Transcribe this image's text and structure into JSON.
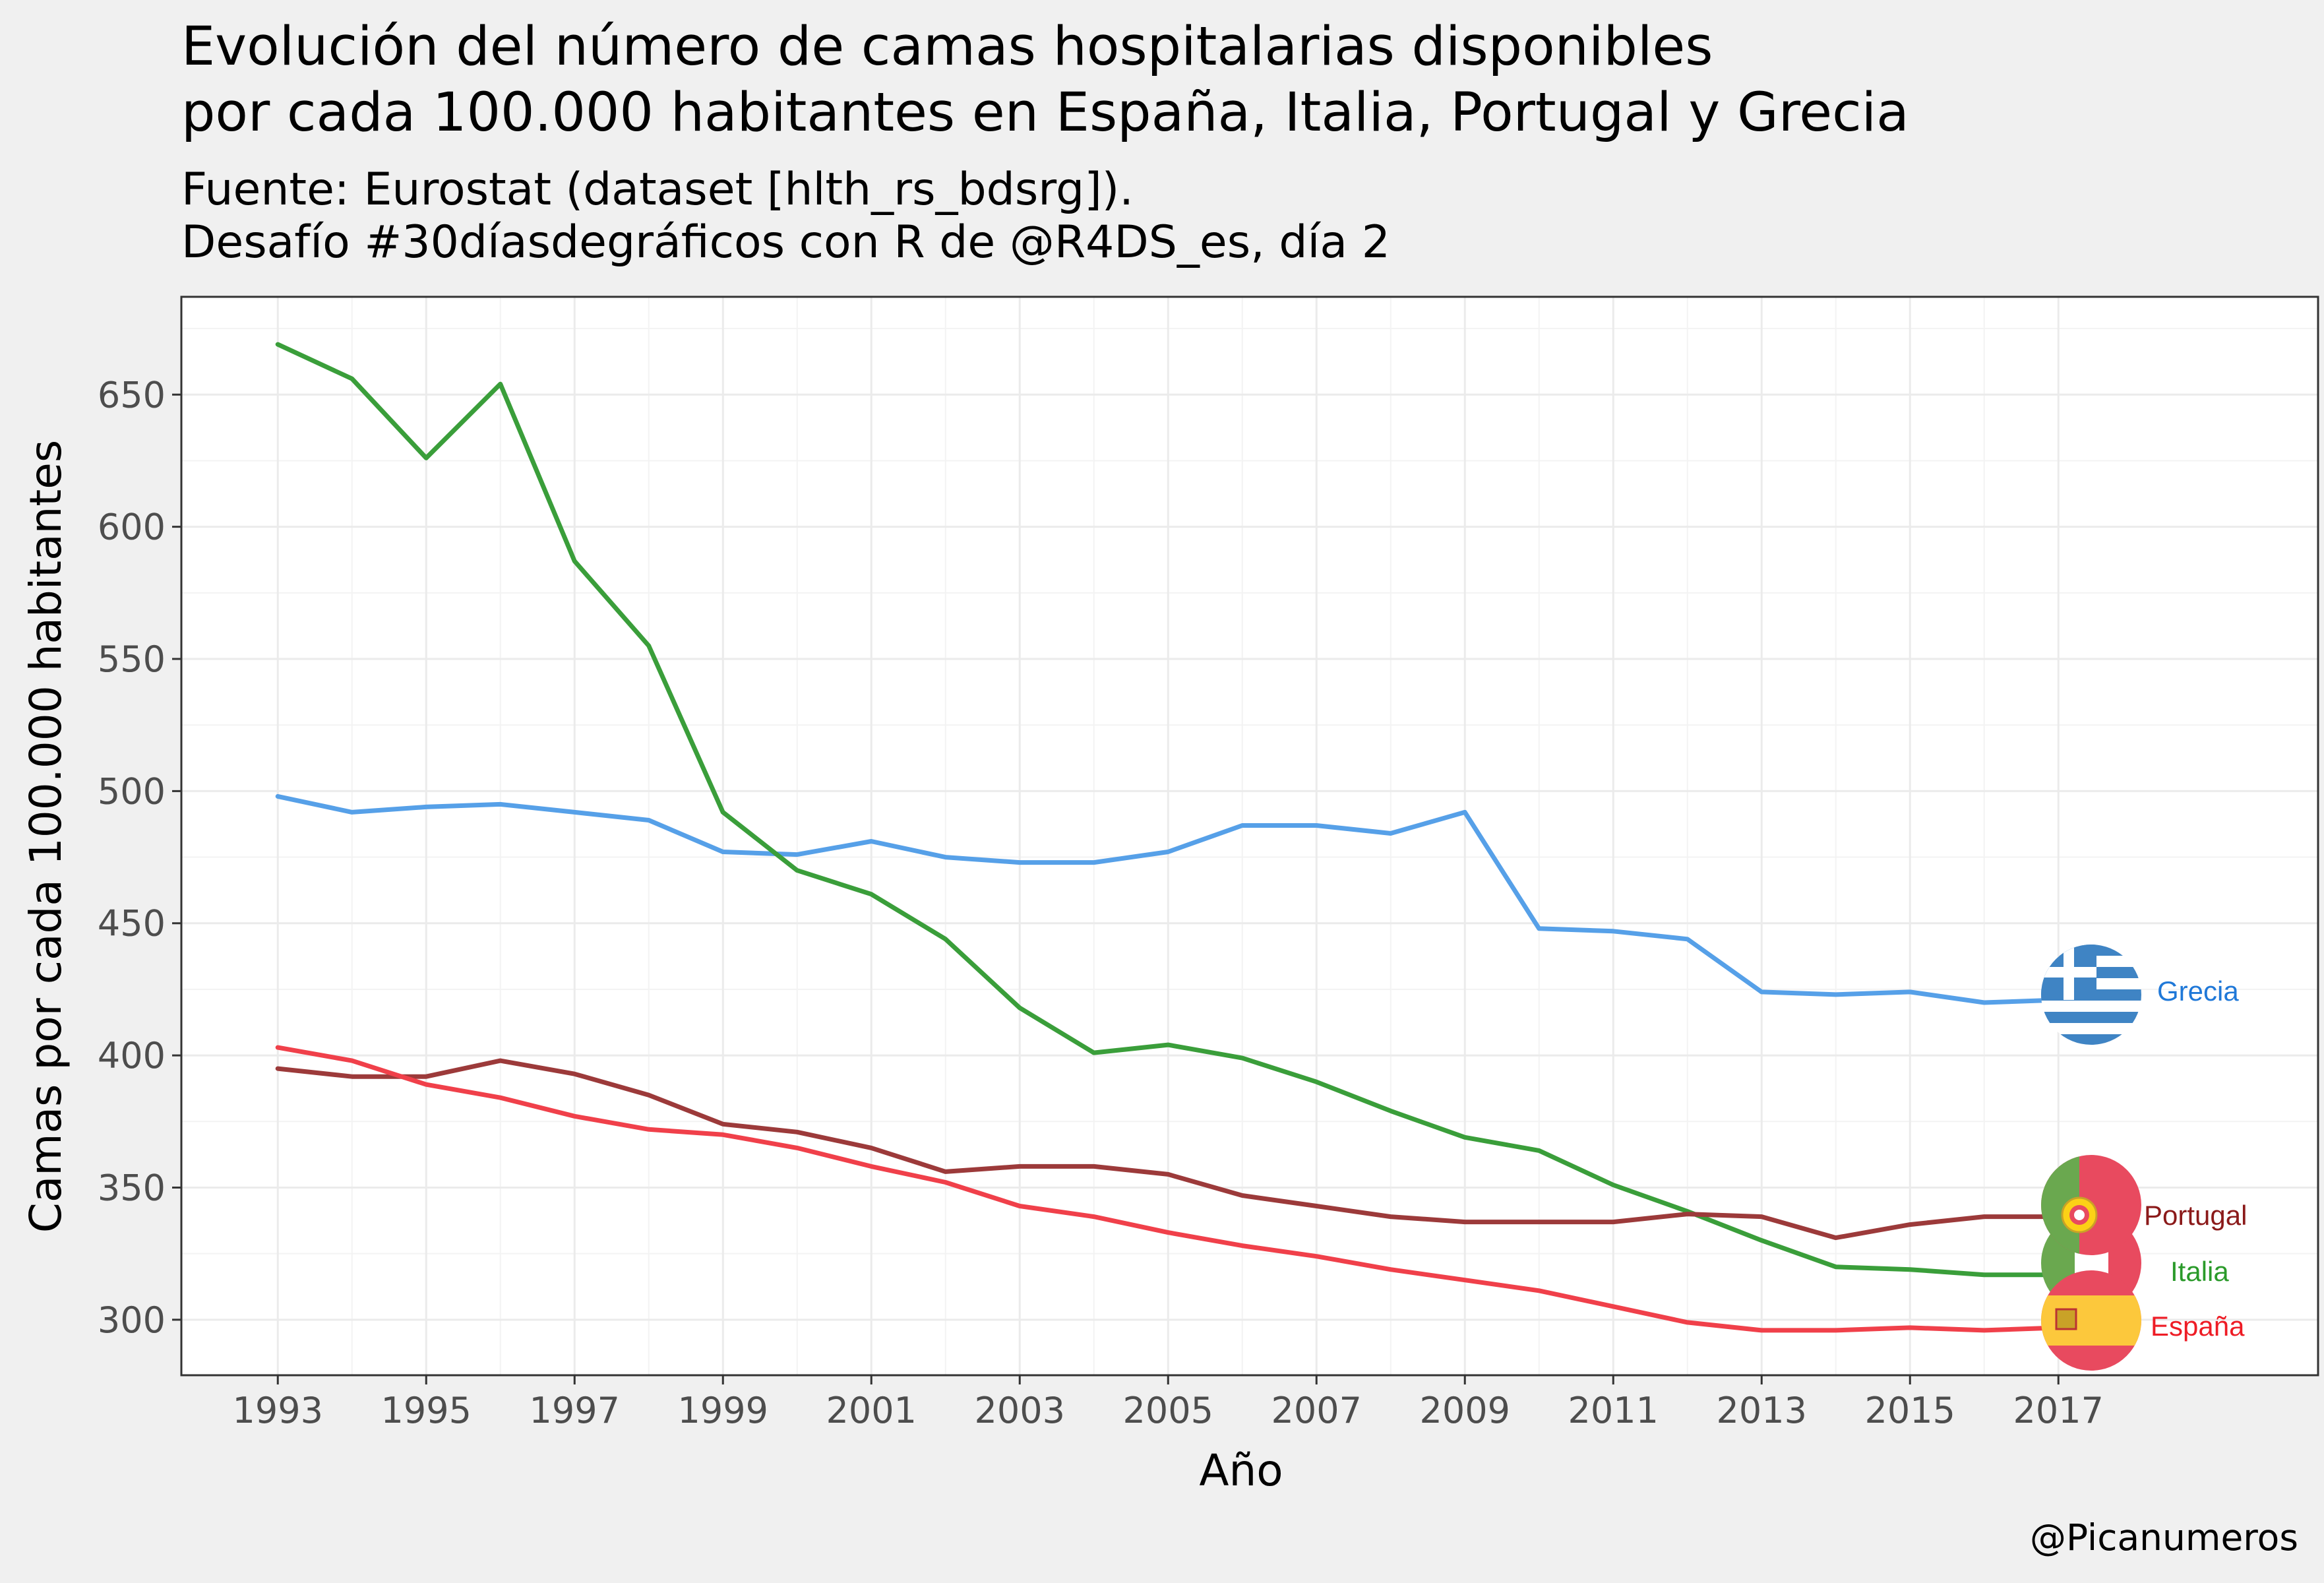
{
  "chart_data": {
    "type": "line",
    "title_lines": [
      "Evolución del número de camas hospitalarias disponibles",
      "por cada 100.000 habitantes en España, Italia, Portugal y Grecia"
    ],
    "subtitle_lines": [
      "Fuente: Eurostat (dataset [hlth_rs_bdsrg]).",
      "Desafío #30díasdegráficos con R de @R4DS_es, día 2"
    ],
    "xlabel": "Año",
    "ylabel": "Camas por cada 100.000 habitantes",
    "caption": "@Picanumeros",
    "xlim": [
      1991.7,
      2020.5
    ],
    "ylim": [
      279,
      687
    ],
    "x_ticks": [
      1993,
      1995,
      1997,
      1999,
      2001,
      2003,
      2005,
      2007,
      2009,
      2011,
      2013,
      2015,
      2017
    ],
    "y_ticks": [
      300,
      350,
      400,
      450,
      500,
      550,
      600,
      650
    ],
    "x": [
      1993,
      1994,
      1995,
      1996,
      1997,
      1998,
      1999,
      2000,
      2001,
      2002,
      2003,
      2004,
      2005,
      2006,
      2007,
      2008,
      2009,
      2010,
      2011,
      2012,
      2013,
      2014,
      2015,
      2016,
      2017
    ],
    "grid": true,
    "legend": "none",
    "series": [
      {
        "name": "Grecia",
        "color": "#56a0e8",
        "values": [
          498,
          492,
          494,
          495,
          492,
          489,
          477,
          476,
          481,
          475,
          473,
          473,
          477,
          487,
          487,
          484,
          492,
          448,
          447,
          444,
          424,
          423,
          424,
          420,
          421
        ]
      },
      {
        "name": "Italia",
        "color": "#3a9e3a",
        "values": [
          669,
          656,
          626,
          654,
          587,
          555,
          492,
          470,
          461,
          444,
          418,
          401,
          404,
          399,
          390,
          379,
          369,
          364,
          351,
          341,
          330,
          320,
          319,
          317,
          317
        ]
      },
      {
        "name": "Portugal",
        "color": "#9c3a3a",
        "values": [
          395,
          392,
          392,
          398,
          393,
          385,
          374,
          371,
          365,
          356,
          358,
          358,
          355,
          347,
          343,
          339,
          337,
          337,
          337,
          340,
          339,
          331,
          336,
          339,
          339
        ]
      },
      {
        "name": "España",
        "color": "#f0404a",
        "values": [
          403,
          398,
          389,
          384,
          377,
          372,
          370,
          365,
          358,
          352,
          343,
          339,
          333,
          328,
          324,
          319,
          315,
          311,
          305,
          299,
          296,
          296,
          297,
          296,
          297
        ]
      }
    ],
    "end_labels": [
      {
        "series": "Grecia",
        "text": "Grecia",
        "color": "#1f78d8",
        "flag": "greece-flag-icon",
        "y": 419
      },
      {
        "series": "Portugal",
        "text": "Portugal",
        "color": "#8b1a1a",
        "flag": "portugal-flag-icon",
        "y": 338
      },
      {
        "series": "Italia",
        "text": "Italia",
        "color": "#2a9a2a",
        "flag": "italy-flag-icon",
        "y": 317
      },
      {
        "series": "España",
        "text": "España",
        "color": "#ee1c25",
        "flag": "spain-flag-icon",
        "y": 296
      }
    ]
  }
}
